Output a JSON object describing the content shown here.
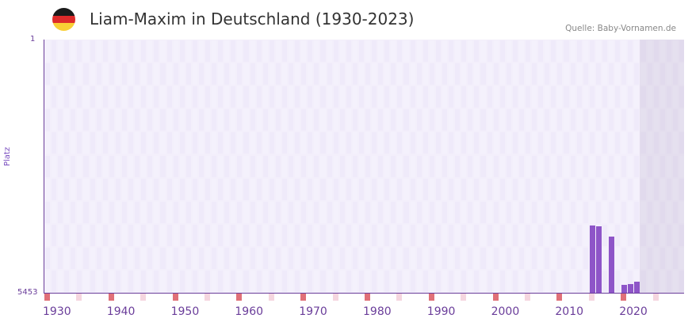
{
  "header": {
    "title": "Liam-Maxim in Deutschland (1930-2023)",
    "source": "Quelle: Baby-Vornamen.de",
    "flag_colors": [
      "#1a1a1a",
      "#dd2a2a",
      "#f9cf35"
    ]
  },
  "colors": {
    "bar": "#8e55c8",
    "axis": "#6a3d9a",
    "decade_marker": "#e07078",
    "halfdecade_marker": "#f5d6df"
  },
  "chart_data": {
    "type": "bar",
    "title": "Liam-Maxim in Deutschland (1930-2023)",
    "xlabel": "",
    "ylabel": "Platz",
    "y_inverted": true,
    "ylim": [
      1,
      5453
    ],
    "y_ticks": [
      "1",
      "5453"
    ],
    "x_ticks": [
      "1930",
      "1940",
      "1950",
      "1960",
      "1970",
      "1980",
      "1990",
      "2000",
      "2010",
      "2020"
    ],
    "x_range": [
      1930,
      2029
    ],
    "shaded_from_year": 2023,
    "categories": [
      "2015",
      "2016",
      "2018",
      "2020",
      "2021",
      "2022"
    ],
    "values": [
      4005,
      4022,
      4243,
      5282,
      5265,
      5214
    ],
    "grid": true,
    "legend": null
  },
  "axis": {
    "y_top": "1",
    "y_bottom": "5453",
    "y_label": "Platz"
  },
  "xticks": [
    "1930",
    "1940",
    "1950",
    "1960",
    "1970",
    "1980",
    "1990",
    "2000",
    "2010",
    "2020"
  ]
}
